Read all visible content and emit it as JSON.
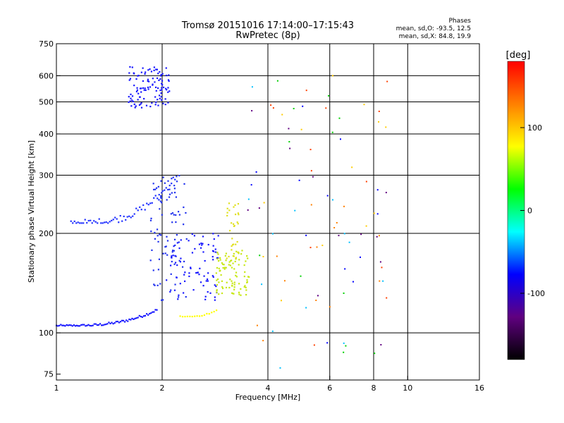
{
  "chart_data": {
    "type": "scatter",
    "title": "Tromsø 20151016 17:14:00–17:15:43",
    "subtitle": "RwPretec (8p)",
    "xlabel": "Frequency [MHz]",
    "ylabel": "Stationary phase Virtual Height [km]",
    "x_scale": "log",
    "y_scale": "log",
    "xlim": [
      1,
      16
    ],
    "ylim": [
      72,
      750
    ],
    "x_ticks": [
      1,
      2,
      4,
      6,
      8,
      10,
      16
    ],
    "y_ticks": [
      75,
      100,
      200,
      300,
      400,
      500,
      600,
      750
    ],
    "x_gridlines": [
      2,
      4,
      6,
      8,
      10
    ],
    "y_gridlines": [
      100,
      200,
      300,
      400,
      500,
      600
    ],
    "legend_block": {
      "title": "Phases",
      "line1": "mean, sd,O: -93.5, 12.5",
      "line2": "mean, sd,X:  84.8, 19.9"
    },
    "colorbar": {
      "label": "[deg]",
      "range": [
        -180,
        180
      ],
      "ticks": [
        100,
        0,
        -100
      ],
      "colors": [
        "#ff0000",
        "#ff8000",
        "#ffff00",
        "#00ff00",
        "#00ffff",
        "#0000ff",
        "#600080",
        "#000000"
      ]
    },
    "clusters": [
      {
        "name": "",
        "color": "#1a1aff",
        "n": 70,
        "x": [
          1.0,
          1.95
        ],
        "y": [
          105,
          118
        ],
        "path": "rising-edge"
      },
      {
        "name": "",
        "color": "#2233ee",
        "n": 90,
        "x": [
          1.85,
          2.35
        ],
        "y": [
          125,
          300
        ],
        "path": "spread"
      },
      {
        "name": "",
        "color": "#1a1aff",
        "n": 110,
        "x": [
          1.6,
          2.1
        ],
        "y": [
          480,
          640
        ],
        "path": "spread"
      },
      {
        "name": "",
        "color": "#2030ff",
        "n": 60,
        "x": [
          1.1,
          2.2
        ],
        "y": [
          215,
          300
        ],
        "path": "rising-edge"
      },
      {
        "name": "",
        "color": "#1a1aff",
        "n": 80,
        "x": [
          2.05,
          2.9
        ],
        "y": [
          125,
          200
        ],
        "path": "spread"
      },
      {
        "name": "",
        "color": "#c8e818",
        "n": 95,
        "x": [
          2.85,
          3.55
        ],
        "y": [
          130,
          180
        ],
        "path": "spread"
      },
      {
        "name": "",
        "color": "#e0e020",
        "n": 30,
        "x": [
          3.05,
          3.3
        ],
        "y": [
          165,
          250
        ],
        "path": "spread"
      },
      {
        "name": "",
        "color": "#ffff00",
        "n": 16,
        "x": [
          2.25,
          2.9
        ],
        "y": [
          112,
          118
        ],
        "path": "rising-edge"
      }
    ]
  }
}
